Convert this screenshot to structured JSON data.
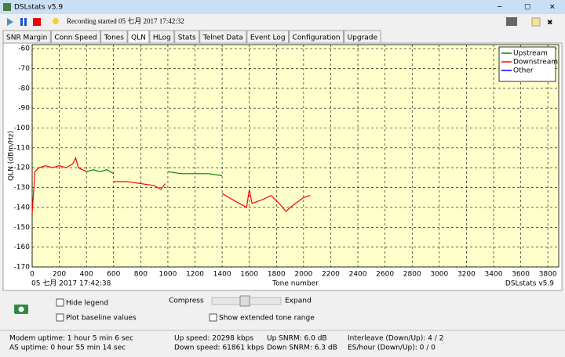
{
  "window": {
    "title": "DSLstats v5.9"
  },
  "toolbar": {
    "status": "Recording started 05 七月 2017 17:42:32"
  },
  "tabs": [
    "SNR Margin",
    "Conn Speed",
    "Tones",
    "QLN",
    "HLog",
    "Stats",
    "Telnet Data",
    "Event Log",
    "Configuration",
    "Upgrade"
  ],
  "active_tab": 3,
  "chart_data": {
    "type": "line",
    "ylabel": "QLN (dBm/Hz)",
    "xlabel": "Tone number",
    "footer_left": "05 七月 2017 17:42:38",
    "footer_right": "DSLstats v5.9",
    "x": [
      0,
      20,
      50,
      100,
      150,
      200,
      250,
      300,
      320,
      340,
      400,
      450,
      500,
      550,
      600,
      700,
      800,
      900,
      950,
      980,
      1000,
      1100,
      1200,
      1300,
      1400,
      1450,
      1500,
      1580,
      1600,
      1620,
      1700,
      1760,
      1820,
      1870,
      1920,
      2000,
      2050
    ],
    "series": [
      {
        "name": "Upstream",
        "color": "#008000",
        "values": [
          null,
          null,
          null,
          null,
          null,
          null,
          null,
          null,
          null,
          null,
          -122,
          -121,
          -122,
          -121,
          -123,
          null,
          null,
          null,
          null,
          null,
          -122,
          -123,
          -123,
          -123,
          -124,
          null,
          null,
          null,
          null,
          null,
          null,
          null,
          null,
          null,
          null,
          null,
          null
        ]
      },
      {
        "name": "Downstream",
        "color": "#ff0000",
        "values": [
          -143,
          -122,
          -120,
          -119,
          -120,
          -119,
          -120,
          -118,
          -115,
          -120,
          -122,
          null,
          null,
          null,
          -127,
          -127,
          -128,
          -129,
          -131,
          -128,
          null,
          null,
          null,
          null,
          -133,
          -135,
          -137,
          -140,
          -131,
          -138,
          -136,
          -134,
          -138,
          -142,
          -139,
          -135,
          -134
        ]
      },
      {
        "name": "Other",
        "color": "#0000ff",
        "values": [
          null,
          null,
          null,
          null,
          null,
          null,
          null,
          null,
          null,
          null,
          null,
          null,
          null,
          null,
          null,
          null,
          null,
          null,
          null,
          null,
          null,
          null,
          null,
          null,
          null,
          null,
          null,
          null,
          null,
          null,
          null,
          null,
          null,
          null,
          null,
          null,
          null
        ]
      }
    ],
    "xlim": [
      0,
      3880
    ],
    "ylim": [
      -170,
      -58
    ],
    "xticks": [
      0,
      200,
      400,
      600,
      800,
      1000,
      1200,
      1400,
      1600,
      1800,
      2000,
      2200,
      2400,
      2600,
      2800,
      3000,
      3200,
      3400,
      3600,
      3800
    ],
    "yticks": [
      -60,
      -70,
      -80,
      -90,
      -100,
      -110,
      -120,
      -130,
      -140,
      -150,
      -160,
      -170
    ],
    "grid": true,
    "legend": "upper right",
    "background": "#ffffcc"
  },
  "controls": {
    "hide_legend": "Hide legend",
    "plot_baseline": "Plot baseline values",
    "compress": "Compress",
    "expand": "Expand",
    "extended_range": "Show extended tone range"
  },
  "status": [
    "Modem uptime:  1 hour 5 min 6 sec",
    "AS uptime:  0 hour 55 min 14 sec",
    "Up speed: 20298 kbps",
    "Down speed: 61861 kbps",
    "Up SNRM: 6.0 dB",
    "Down SNRM: 6.3 dB",
    "Interleave (Down/Up): 4 / 2",
    "ES/hour (Down/Up): 0 / 0"
  ]
}
